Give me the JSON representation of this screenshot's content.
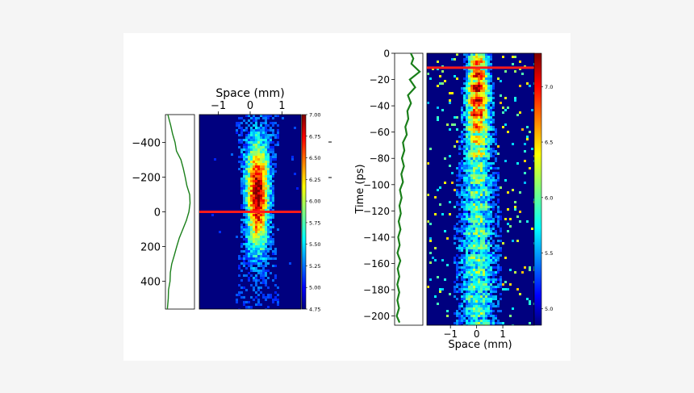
{
  "chart_data": [
    {
      "type": "line",
      "panel": "left-profile",
      "ylim": [
        560,
        -560
      ],
      "yticks": [
        -400,
        -200,
        0,
        200,
        400
      ],
      "ytick_labels": [
        "−400",
        "−200",
        "0",
        "200",
        "400"
      ],
      "series": [
        {
          "color": "#1a7f1a",
          "points": [
            [
              0.05,
              -560
            ],
            [
              0.12,
              -500
            ],
            [
              0.22,
              -450
            ],
            [
              0.3,
              -400
            ],
            [
              0.42,
              -350
            ],
            [
              0.55,
              -300
            ],
            [
              0.68,
              -250
            ],
            [
              0.78,
              -200
            ],
            [
              0.85,
              -150
            ],
            [
              0.9,
              -100
            ],
            [
              0.92,
              -50
            ],
            [
              0.9,
              0
            ],
            [
              0.8,
              50
            ],
            [
              0.65,
              100
            ],
            [
              0.5,
              150
            ],
            [
              0.38,
              200
            ],
            [
              0.28,
              250
            ],
            [
              0.2,
              300
            ],
            [
              0.14,
              350
            ],
            [
              0.1,
              400
            ],
            [
              0.07,
              450
            ],
            [
              0.05,
              500
            ],
            [
              0.04,
              560
            ]
          ]
        }
      ]
    },
    {
      "type": "heatmap",
      "panel": "left-map",
      "xlabel": "Space (mm)",
      "xlim": [
        -1.6,
        1.6
      ],
      "xticks": [
        -1,
        0,
        1
      ],
      "xtick_labels": [
        "−1",
        "0",
        "1"
      ],
      "ylim": [
        560,
        -560
      ],
      "marker_line_y": 0,
      "marker_color": "#ff1a1a",
      "colorbar": {
        "range": [
          4.75,
          7.0
        ],
        "ticks": [
          4.75,
          5.0,
          5.25,
          5.5,
          5.75,
          6.0,
          6.25,
          6.5,
          6.75,
          7.0
        ],
        "tick_labels": [
          "4.75",
          "5.00",
          "5.25",
          "5.50",
          "5.75",
          "6.00",
          "6.25",
          "6.50",
          "6.75",
          "7.00"
        ],
        "colormap": "jet"
      },
      "intensity_model": {
        "center_x": 0.2,
        "sigma_x_mm": [
          0.22,
          0.3
        ],
        "peak_time": -100
      }
    },
    {
      "type": "line",
      "panel": "right-profile",
      "ylim": [
        0,
        -205
      ],
      "series": [
        {
          "color": "#1a7f1a",
          "points": [
            [
              0.6,
              0
            ],
            [
              0.7,
              -4
            ],
            [
              0.6,
              -8
            ],
            [
              0.95,
              -14
            ],
            [
              0.55,
              -20
            ],
            [
              0.75,
              -26
            ],
            [
              0.5,
              -32
            ],
            [
              0.6,
              -38
            ],
            [
              0.42,
              -44
            ],
            [
              0.5,
              -50
            ],
            [
              0.35,
              -56
            ],
            [
              0.42,
              -62
            ],
            [
              0.28,
              -68
            ],
            [
              0.35,
              -74
            ],
            [
              0.22,
              -80
            ],
            [
              0.3,
              -86
            ],
            [
              0.18,
              -92
            ],
            [
              0.25,
              -98
            ],
            [
              0.12,
              -104
            ],
            [
              0.22,
              -110
            ],
            [
              0.1,
              -116
            ],
            [
              0.2,
              -122
            ],
            [
              0.08,
              -128
            ],
            [
              0.18,
              -134
            ],
            [
              0.07,
              -140
            ],
            [
              0.17,
              -146
            ],
            [
              0.06,
              -152
            ],
            [
              0.16,
              -158
            ],
            [
              0.05,
              -164
            ],
            [
              0.14,
              -170
            ],
            [
              0.04,
              -176
            ],
            [
              0.13,
              -182
            ],
            [
              0.03,
              -188
            ],
            [
              0.12,
              -194
            ],
            [
              0.03,
              -200
            ],
            [
              0.1,
              -205
            ]
          ]
        }
      ]
    },
    {
      "type": "heatmap",
      "panel": "right-map",
      "xlabel": "Space (mm)",
      "ylabel": "Time (ps)",
      "xlim": [
        -1.9,
        2.2
      ],
      "xticks": [
        -1,
        0,
        1
      ],
      "xtick_labels": [
        "−1",
        "0",
        "1"
      ],
      "ylim": [
        0,
        -207
      ],
      "yticks": [
        0,
        -20,
        -40,
        -60,
        -80,
        -100,
        -120,
        -140,
        -160,
        -180,
        -200
      ],
      "ytick_labels": [
        "0",
        "−20",
        "−40",
        "−60",
        "−80",
        "−100",
        "−120",
        "−140",
        "−160",
        "−180",
        "−200"
      ],
      "marker_line_y": -11,
      "marker_color": "#ff1a1a",
      "colorbar": {
        "range": [
          4.85,
          7.3
        ],
        "ticks": [
          5.0,
          5.5,
          6.0,
          6.5,
          7.0
        ],
        "tick_labels": [
          "5.0",
          "5.5",
          "6.0",
          "6.5",
          "7.0"
        ],
        "colormap": "jet"
      },
      "intensity_model": {
        "center_x": 0.0,
        "sigma_x_mm": [
          0.25,
          0.45
        ],
        "peak_time": -30
      }
    }
  ]
}
